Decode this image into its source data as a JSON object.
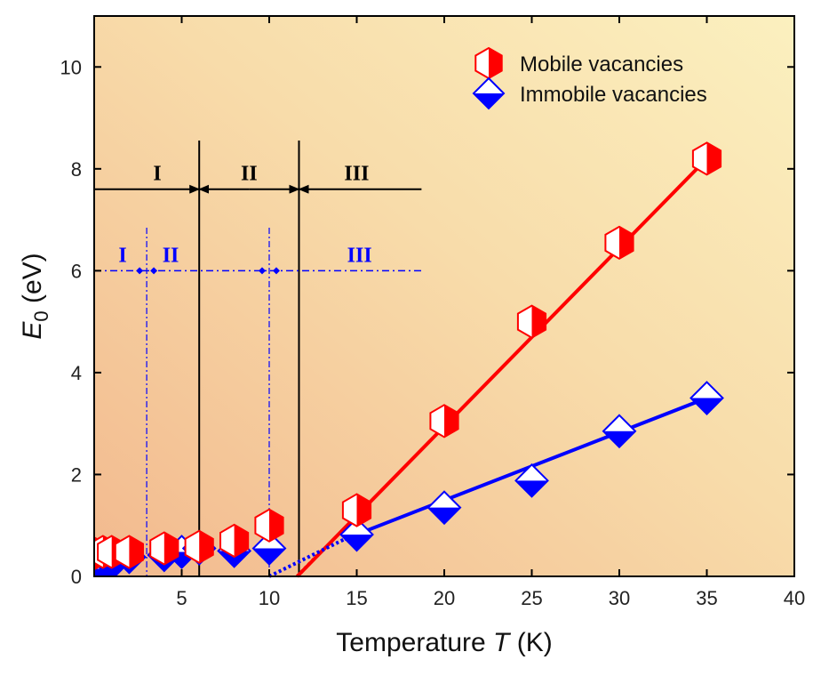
{
  "chart_data": {
    "type": "scatter",
    "title": "",
    "xlabel_prefix": "Temperature ",
    "xlabel_var": "T",
    "xlabel_suffix": " (K)",
    "ylabel_var": "E",
    "ylabel_sub": "0",
    "ylabel_suffix": " (eV)",
    "xlim": [
      0,
      40
    ],
    "ylim": [
      0,
      11
    ],
    "xticks": [
      5,
      10,
      15,
      20,
      25,
      30,
      35,
      40
    ],
    "yticks": [
      0,
      2,
      4,
      6,
      8,
      10
    ],
    "series": [
      {
        "name": "Mobile vacancies",
        "color": "#ff0000",
        "marker": "half-filled hexagon",
        "x": [
          0,
          0.5,
          1,
          2,
          4,
          6,
          8,
          10,
          15,
          20,
          25,
          30,
          35
        ],
        "y": [
          0.45,
          0.48,
          0.48,
          0.48,
          0.55,
          0.58,
          0.7,
          1.0,
          1.3,
          3.05,
          5.0,
          6.55,
          8.2
        ],
        "fit": {
          "x": [
            11.6,
            35
          ],
          "y": [
            0.0,
            8.2
          ],
          "extrapolated": {
            "x": [
              11.6,
              13
            ],
            "y": [
              0.0,
              0.5
            ]
          }
        }
      },
      {
        "name": "Immobile vacancies",
        "color": "#0000ff",
        "marker": "half-filled diamond",
        "x": [
          0,
          0.5,
          1,
          2,
          4,
          5,
          6,
          8,
          10,
          15,
          20,
          25,
          30,
          35
        ],
        "y": [
          0.1,
          0.15,
          0.25,
          0.38,
          0.42,
          0.48,
          0.55,
          0.5,
          0.55,
          0.82,
          1.35,
          1.88,
          2.85,
          3.5
        ],
        "fit": {
          "x": [
            14.3,
            35
          ],
          "y": [
            0.73,
            3.5
          ],
          "extrapolated": {
            "x": [
              10,
              14.3
            ],
            "y": [
              0.0,
              0.73
            ]
          }
        }
      }
    ],
    "annotations": {
      "black_regions": {
        "labels": [
          "I",
          "II",
          "III"
        ],
        "boundaries_x": [
          6,
          11.7
        ],
        "arrow_y": 7.6,
        "span_x": [
          0,
          18.7
        ],
        "color": "#000000"
      },
      "blue_regions": {
        "labels": [
          "I",
          "II",
          "III"
        ],
        "boundaries_x": [
          3,
          10
        ],
        "arrow_y": 6.0,
        "span_x": [
          0,
          18.7
        ],
        "color": "#0000ff"
      }
    },
    "legend_position": "top-right"
  }
}
